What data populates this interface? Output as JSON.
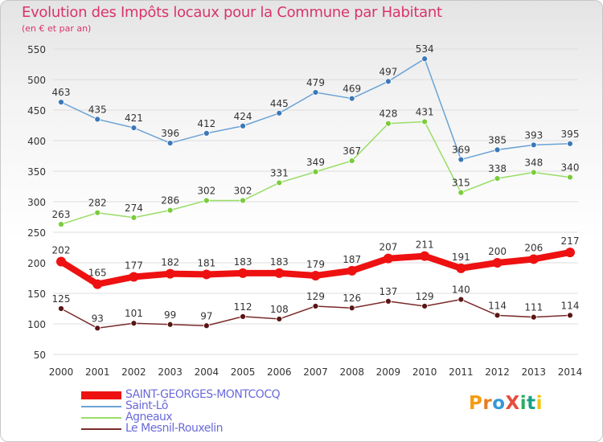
{
  "header": {
    "title": "Evolution des Impôts locaux pour la Commune par Habitant",
    "subtitle": "(en € et par an)"
  },
  "colors": {
    "title": "#d9346a",
    "axis_text": "#333333",
    "legend_text": "#6a6ad9",
    "grid": "#dddddd"
  },
  "logo": {
    "text": "ProXiti",
    "letters": [
      {
        "ch": "P",
        "color": "#f39c12"
      },
      {
        "ch": "r",
        "color": "#e67e22"
      },
      {
        "ch": "o",
        "color": "#3498db"
      },
      {
        "ch": "X",
        "color": "#e74c3c"
      },
      {
        "ch": "i",
        "color": "#27ae60"
      },
      {
        "ch": "t",
        "color": "#16a085"
      },
      {
        "ch": "i",
        "color": "#f1c40f"
      }
    ]
  },
  "chart_data": {
    "type": "line",
    "title": "Evolution des Impôts locaux pour la Commune par Habitant",
    "subtitle": "(en € et par an)",
    "x": [
      "2000",
      "2001",
      "2002",
      "2003",
      "2004",
      "2005",
      "2006",
      "2007",
      "2008",
      "2009",
      "2010",
      "2011",
      "2012",
      "2013",
      "2014"
    ],
    "ylim": [
      50,
      550
    ],
    "yticks": [
      50,
      100,
      150,
      200,
      250,
      300,
      350,
      400,
      450,
      500,
      550
    ],
    "grid": "horizontal",
    "legend_position": "bottom-left",
    "series": [
      {
        "name": "Saint-Lô",
        "color": "#6ba3d6",
        "marker": "#3c78b8",
        "thick": false,
        "values": [
          463,
          435,
          421,
          396,
          412,
          424,
          445,
          479,
          469,
          497,
          534,
          369,
          385,
          393,
          395
        ]
      },
      {
        "name": "Agneaux",
        "color": "#99dd66",
        "marker": "#7acc3c",
        "thick": false,
        "values": [
          263,
          282,
          274,
          286,
          302,
          302,
          331,
          349,
          367,
          428,
          431,
          315,
          338,
          348,
          340
        ]
      },
      {
        "name": "SAINT-GEORGES-MONTCOCQ",
        "color": "#ee1111",
        "marker": "#ee1111",
        "thick": true,
        "values": [
          202,
          165,
          177,
          182,
          181,
          183,
          183,
          179,
          187,
          207,
          211,
          191,
          200,
          206,
          217
        ]
      },
      {
        "name": "Le Mesnil-Rouxelin",
        "color": "#7a2a2a",
        "marker": "#5a1515",
        "thick": false,
        "values": [
          125,
          93,
          101,
          99,
          97,
          112,
          108,
          129,
          126,
          137,
          129,
          140,
          114,
          111,
          114
        ]
      }
    ],
    "legend_order": [
      "SAINT-GEORGES-MONTCOCQ",
      "Saint-Lô",
      "Agneaux",
      "Le Mesnil-Rouxelin"
    ]
  }
}
